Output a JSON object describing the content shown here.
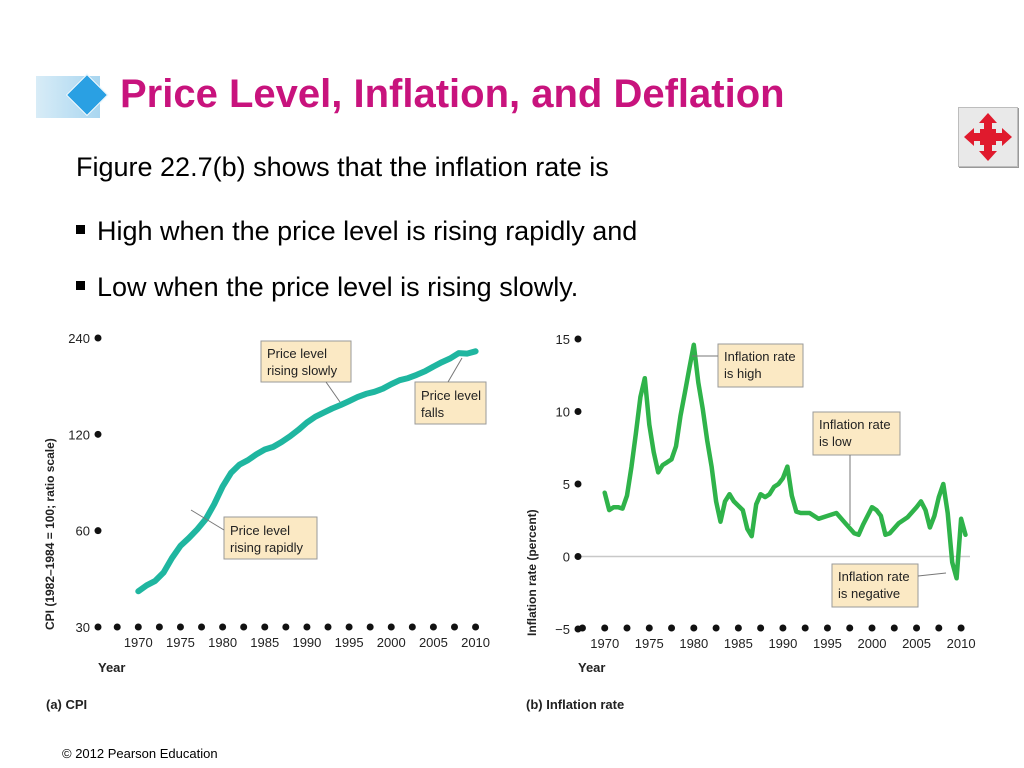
{
  "slide": {
    "title": "Price Level, Inflation, and Deflation",
    "intro": "Figure 22.7(b) shows that the inflation rate is",
    "bullets": [
      "High when the price level is rising rapidly and",
      "Low when the price level is rising slowly."
    ],
    "footer": "© 2012 Pearson Education",
    "nav_icon": "four-way-arrows-icon",
    "colors": {
      "title": "#c8137d",
      "cpi_line": "#1fb6a0",
      "inflation_line": "#2fb34a",
      "callout_bg": "#fbe9c4"
    }
  },
  "chart_data": [
    {
      "type": "line",
      "caption": "(a) CPI",
      "xlabel": "Year",
      "ylabel": "CPI (1982–1984 = 100; ratio scale)",
      "y_scale": "log",
      "ylim": [
        30,
        240
      ],
      "xlim": [
        1967,
        2011
      ],
      "y_ticks": [
        "30",
        "60",
        "120",
        "240"
      ],
      "x_ticks": [
        "1970",
        "1975",
        "1980",
        "1985",
        "1990",
        "1995",
        "2000",
        "2005",
        "2010"
      ],
      "series": [
        {
          "x": [
            1970,
            1971,
            1972,
            1973,
            1974,
            1975,
            1976,
            1977,
            1978,
            1979,
            1980,
            1981,
            1982,
            1983,
            1984,
            1985,
            1986,
            1987,
            1988,
            1989,
            1990,
            1991,
            1992,
            1993,
            1994,
            1995,
            1996,
            1997,
            1998,
            1999,
            2000,
            2001,
            2002,
            2003,
            2004,
            2005,
            2006,
            2007,
            2008,
            2009,
            2010
          ],
          "y": [
            38.8,
            40.5,
            41.8,
            44.4,
            49.3,
            53.8,
            56.9,
            60.6,
            65.2,
            72.6,
            82.4,
            90.9,
            96.5,
            99.6,
            103.9,
            107.6,
            109.6,
            113.6,
            118.3,
            124.0,
            130.7,
            136.2,
            140.3,
            144.5,
            148.2,
            152.4,
            156.9,
            160.5,
            163.0,
            166.6,
            172.2,
            177.1,
            179.9,
            184.0,
            188.9,
            195.3,
            201.6,
            207.3,
            215.3,
            214.5,
            218.1
          ]
        }
      ],
      "annotations": [
        "Price level rising slowly",
        "Price level falls",
        "Price level rising rapidly"
      ]
    },
    {
      "type": "line",
      "caption": "(b) Inflation rate",
      "xlabel": "Year",
      "ylabel": "Inflation rate (percent)",
      "ylim": [
        -5,
        15
      ],
      "xlim": [
        1967,
        2011
      ],
      "y_ticks": [
        "−5",
        "0",
        "5",
        "10",
        "15"
      ],
      "x_ticks": [
        "1970",
        "1975",
        "1980",
        "1985",
        "1990",
        "1995",
        "2000",
        "2005",
        "2010"
      ],
      "series": [
        {
          "x": [
            1970,
            1970.5,
            1971,
            1971.5,
            1972,
            1972.5,
            1973,
            1973.5,
            1974,
            1974.5,
            1975,
            1975.5,
            1976,
            1976.5,
            1977,
            1977.5,
            1978,
            1978.5,
            1979,
            1979.5,
            1980,
            1980.5,
            1981,
            1981.5,
            1982,
            1982.5,
            1983,
            1983.5,
            1984,
            1984.5,
            1985,
            1985.5,
            1986,
            1986.5,
            1987,
            1987.5,
            1988,
            1988.5,
            1989,
            1989.5,
            1990,
            1990.5,
            1991,
            1991.5,
            1992,
            1993,
            1994,
            1995,
            1996,
            1997,
            1998,
            1998.5,
            1999,
            2000,
            2000.5,
            2001,
            2001.5,
            2002,
            2003,
            2004,
            2005,
            2005.5,
            2006,
            2006.5,
            2007,
            2007.5,
            2008,
            2008.5,
            2009,
            2009.5,
            2010,
            2010.5
          ],
          "y": [
            4.4,
            3.2,
            3.4,
            3.4,
            3.3,
            4.2,
            6.2,
            8.5,
            11.0,
            12.3,
            9.1,
            7.2,
            5.8,
            6.3,
            6.5,
            6.7,
            7.6,
            9.7,
            11.3,
            13.0,
            14.6,
            12.0,
            10.2,
            8.0,
            6.2,
            3.8,
            2.4,
            3.8,
            4.3,
            3.8,
            3.5,
            3.2,
            1.9,
            1.4,
            3.6,
            4.3,
            4.1,
            4.3,
            4.8,
            5.0,
            5.4,
            6.2,
            4.2,
            3.1,
            3.0,
            3.0,
            2.6,
            2.8,
            3.0,
            2.3,
            1.6,
            1.5,
            2.2,
            3.4,
            3.2,
            2.8,
            1.5,
            1.6,
            2.3,
            2.7,
            3.4,
            3.8,
            3.2,
            2.0,
            2.8,
            4.1,
            5.0,
            3.0,
            -0.4,
            -1.5,
            2.6,
            1.5
          ]
        }
      ],
      "annotations": [
        "Inflation rate is high",
        "Inflation rate is low",
        "Inflation rate is negative"
      ]
    }
  ]
}
